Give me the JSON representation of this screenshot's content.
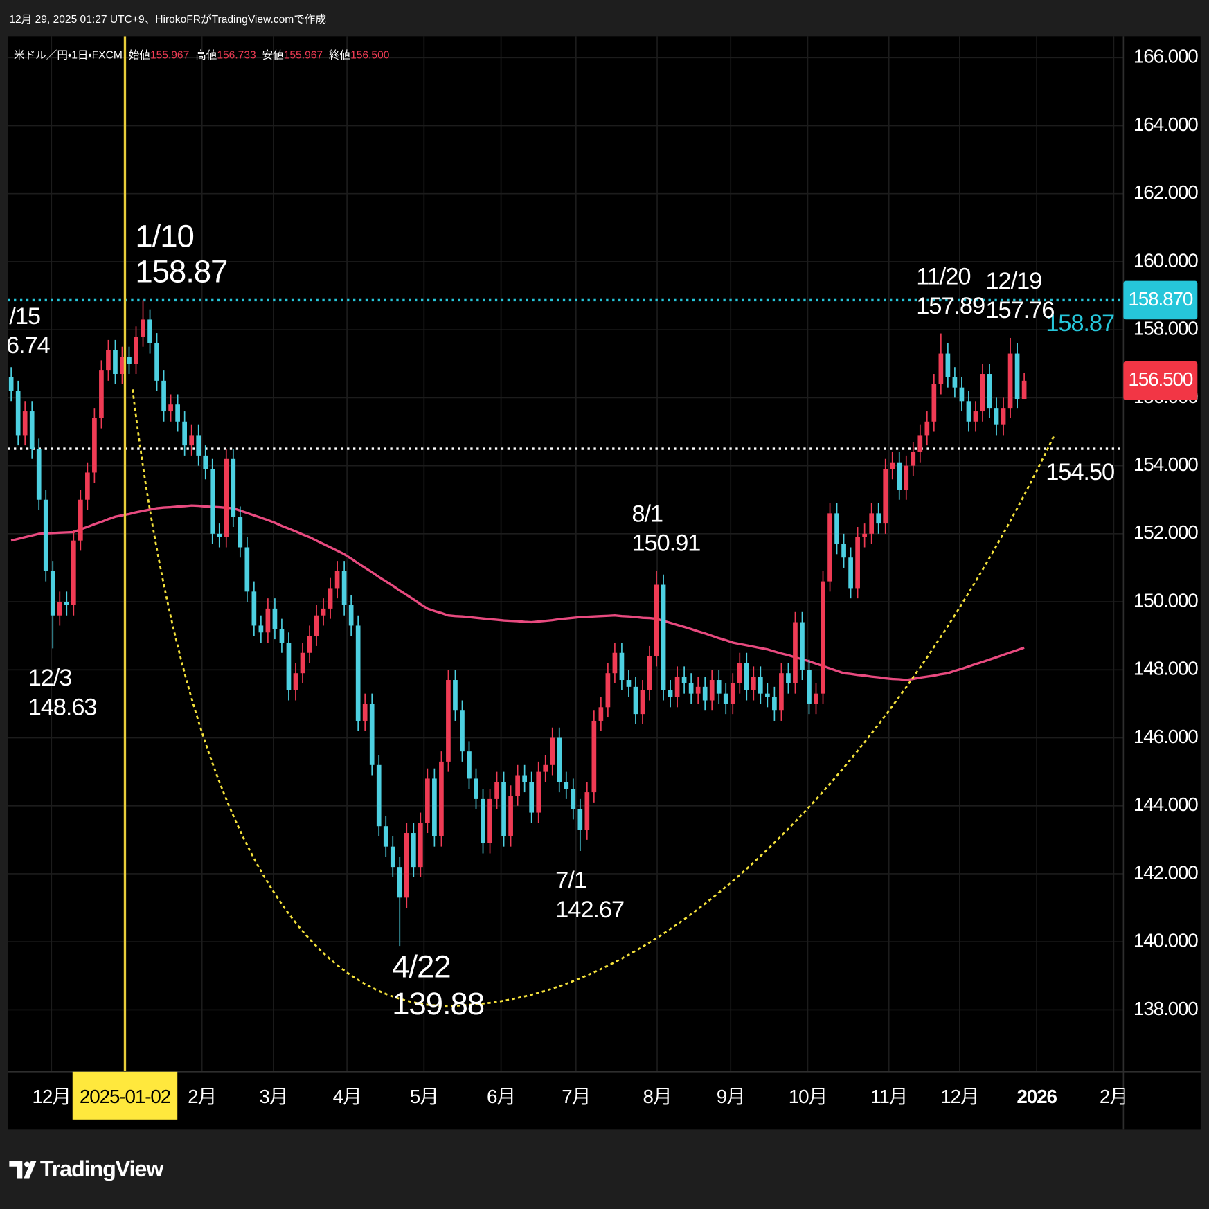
{
  "header": {
    "text": "12月 29, 2025 01:27 UTC+9、HirokoFRがTradingView.comで作成"
  },
  "branding": "TradingView",
  "chart_data": {
    "type": "candlestick",
    "legend": {
      "symbol": "米ドル／円・1日・FXCM",
      "items": [
        {
          "name": "始値",
          "value": 155.967
        },
        {
          "name": "高値",
          "value": 156.733
        },
        {
          "name": "安値",
          "value": 155.967
        },
        {
          "name": "終値",
          "value": 156.5,
          "label": "156.500"
        }
      ]
    },
    "up_color": "#ef3b54",
    "down_color": "#4dd0e1",
    "categories": [
      null,
      null,
      null,
      null,
      null,
      null,
      null,
      null,
      null,
      null,
      null,
      null,
      null,
      null,
      null,
      null,
      null,
      null,
      null,
      null,
      null,
      null,
      null,
      null,
      null,
      null,
      null,
      null,
      null,
      null,
      null,
      null,
      null,
      null,
      null,
      null,
      null,
      null,
      null,
      null,
      null,
      null,
      null,
      null,
      null,
      null,
      null,
      null,
      null,
      null,
      null,
      null,
      null,
      null,
      null,
      null,
      null,
      null,
      null,
      null,
      null,
      null,
      null,
      null,
      null,
      null,
      null,
      null,
      null,
      null,
      null,
      null,
      null,
      null,
      null,
      null,
      null,
      null,
      null,
      null,
      null,
      null,
      null,
      null,
      null,
      null,
      null,
      null,
      null,
      null,
      null,
      null,
      null,
      null,
      null,
      null,
      null,
      null,
      null,
      null,
      null,
      null,
      null,
      null,
      null,
      null,
      null,
      null,
      null,
      null,
      null,
      null,
      null,
      null,
      null,
      null,
      null,
      null,
      null,
      null,
      null,
      null,
      null,
      null,
      null,
      null,
      null,
      null,
      null,
      null,
      null,
      null,
      null,
      null,
      null,
      null,
      null,
      null,
      null,
      null,
      null,
      null,
      null,
      null,
      null,
      null,
      null
    ],
    "values": [
      [
        156.6,
        156.9,
        155.9,
        156.2
      ],
      [
        156.2,
        156.5,
        154.6,
        154.9
      ],
      [
        154.9,
        155.9,
        154.6,
        155.6
      ],
      [
        155.6,
        155.9,
        154.2,
        154.5
      ],
      [
        154.5,
        154.8,
        152.7,
        153.0
      ],
      [
        153.0,
        153.3,
        150.6,
        150.9
      ],
      [
        150.9,
        151.2,
        148.63,
        149.6
      ],
      [
        149.6,
        150.3,
        149.3,
        150.0
      ],
      [
        150.0,
        150.3,
        149.6,
        149.9
      ],
      [
        149.9,
        152.1,
        149.6,
        151.8
      ],
      [
        151.8,
        153.3,
        151.5,
        153.0
      ],
      [
        153.0,
        154.1,
        152.7,
        153.8
      ],
      [
        153.8,
        155.7,
        153.5,
        155.4
      ],
      [
        155.4,
        157.1,
        155.1,
        156.8
      ],
      [
        156.8,
        157.7,
        156.5,
        157.4
      ],
      [
        157.4,
        157.7,
        156.4,
        156.7
      ],
      [
        156.7,
        157.5,
        156.4,
        157.2
      ],
      [
        157.2,
        157.5,
        156.7,
        157.0
      ],
      [
        157.0,
        158.1,
        156.7,
        157.8
      ],
      [
        157.8,
        158.87,
        157.5,
        158.3
      ],
      [
        158.3,
        158.6,
        157.3,
        157.6
      ],
      [
        157.6,
        157.9,
        156.2,
        156.5
      ],
      [
        156.5,
        156.8,
        155.3,
        155.6
      ],
      [
        155.6,
        156.1,
        155.3,
        155.8
      ],
      [
        155.8,
        156.1,
        155.0,
        155.3
      ],
      [
        155.3,
        155.6,
        154.3,
        154.6
      ],
      [
        154.6,
        155.2,
        154.3,
        154.9
      ],
      [
        154.9,
        155.2,
        154.0,
        154.3
      ],
      [
        154.3,
        154.6,
        153.6,
        153.9
      ],
      [
        153.9,
        154.2,
        151.7,
        152.0
      ],
      [
        152.0,
        152.3,
        151.6,
        151.9
      ],
      [
        151.9,
        154.5,
        151.6,
        154.2
      ],
      [
        154.2,
        154.5,
        152.2,
        152.5
      ],
      [
        152.5,
        152.8,
        151.3,
        151.6
      ],
      [
        151.6,
        151.9,
        150.0,
        150.3
      ],
      [
        150.3,
        150.6,
        149.0,
        149.3
      ],
      [
        149.3,
        149.6,
        148.8,
        149.1
      ],
      [
        149.1,
        150.1,
        148.8,
        149.8
      ],
      [
        149.8,
        150.1,
        148.9,
        149.2
      ],
      [
        149.2,
        149.5,
        148.5,
        148.8
      ],
      [
        148.8,
        149.1,
        147.1,
        147.4
      ],
      [
        147.4,
        148.2,
        147.1,
        147.9
      ],
      [
        147.9,
        148.8,
        147.6,
        148.5
      ],
      [
        148.5,
        149.3,
        148.2,
        149.0
      ],
      [
        149.0,
        149.9,
        148.7,
        149.6
      ],
      [
        149.6,
        150.1,
        149.3,
        149.8
      ],
      [
        149.8,
        150.7,
        149.5,
        150.4
      ],
      [
        150.4,
        151.2,
        150.1,
        150.9
      ],
      [
        150.9,
        151.2,
        149.6,
        149.9
      ],
      [
        149.9,
        150.2,
        149.0,
        149.3
      ],
      [
        149.3,
        149.6,
        146.2,
        146.5
      ],
      [
        146.5,
        147.3,
        146.2,
        147.0
      ],
      [
        147.0,
        147.3,
        144.9,
        145.2
      ],
      [
        145.2,
        145.5,
        143.1,
        143.4
      ],
      [
        143.4,
        143.7,
        142.5,
        142.8
      ],
      [
        142.8,
        143.1,
        141.9,
        142.2
      ],
      [
        142.2,
        142.5,
        139.88,
        141.3
      ],
      [
        141.3,
        143.5,
        141.0,
        143.2
      ],
      [
        143.2,
        143.5,
        141.9,
        142.2
      ],
      [
        142.2,
        143.8,
        141.9,
        143.5
      ],
      [
        143.5,
        145.1,
        143.2,
        144.8
      ],
      [
        144.8,
        145.1,
        142.8,
        143.1
      ],
      [
        143.1,
        145.6,
        142.8,
        145.3
      ],
      [
        145.3,
        148.0,
        145.0,
        147.7
      ],
      [
        147.7,
        148.0,
        146.5,
        146.8
      ],
      [
        146.8,
        147.1,
        145.3,
        145.6
      ],
      [
        145.6,
        145.9,
        144.5,
        144.8
      ],
      [
        144.8,
        145.1,
        143.9,
        144.2
      ],
      [
        144.2,
        144.5,
        142.6,
        142.9
      ],
      [
        142.9,
        144.5,
        142.6,
        144.2
      ],
      [
        144.2,
        145.0,
        143.9,
        144.7
      ],
      [
        144.7,
        145.0,
        142.8,
        143.1
      ],
      [
        143.1,
        144.6,
        142.8,
        144.3
      ],
      [
        144.3,
        145.2,
        144.0,
        144.9
      ],
      [
        144.9,
        145.2,
        144.4,
        144.7
      ],
      [
        144.7,
        145.0,
        143.5,
        143.8
      ],
      [
        143.8,
        145.3,
        143.5,
        145.0
      ],
      [
        145.0,
        145.5,
        144.7,
        145.2
      ],
      [
        145.2,
        146.3,
        144.9,
        146.0
      ],
      [
        146.0,
        146.3,
        144.4,
        144.7
      ],
      [
        144.7,
        145.0,
        144.2,
        144.5
      ],
      [
        144.5,
        144.8,
        143.6,
        143.9
      ],
      [
        143.9,
        144.2,
        142.67,
        143.3
      ],
      [
        143.3,
        144.7,
        143.0,
        144.4
      ],
      [
        144.4,
        146.8,
        144.1,
        146.5
      ],
      [
        146.5,
        147.2,
        146.2,
        146.9
      ],
      [
        146.9,
        148.2,
        146.6,
        147.9
      ],
      [
        147.9,
        148.8,
        147.6,
        148.5
      ],
      [
        148.5,
        148.8,
        147.4,
        147.7
      ],
      [
        147.7,
        148.0,
        147.2,
        147.5
      ],
      [
        147.5,
        147.8,
        146.4,
        146.7
      ],
      [
        146.7,
        147.7,
        146.4,
        147.4
      ],
      [
        147.4,
        148.7,
        147.1,
        148.4
      ],
      [
        148.4,
        150.91,
        148.1,
        150.5
      ],
      [
        150.5,
        150.8,
        147.1,
        147.4
      ],
      [
        147.4,
        147.7,
        146.9,
        147.2
      ],
      [
        147.2,
        148.1,
        146.9,
        147.8
      ],
      [
        147.8,
        148.1,
        147.3,
        147.6
      ],
      [
        147.6,
        147.9,
        147.0,
        147.3
      ],
      [
        147.3,
        147.8,
        147.0,
        147.5
      ],
      [
        147.5,
        147.8,
        146.8,
        147.1
      ],
      [
        147.1,
        148.0,
        146.8,
        147.7
      ],
      [
        147.7,
        148.0,
        147.0,
        147.3
      ],
      [
        147.3,
        147.6,
        146.7,
        147.0
      ],
      [
        147.0,
        147.9,
        146.7,
        147.6
      ],
      [
        147.6,
        148.5,
        147.3,
        148.2
      ],
      [
        148.2,
        148.5,
        147.1,
        147.4
      ],
      [
        147.4,
        148.1,
        147.1,
        147.8
      ],
      [
        147.8,
        148.1,
        147.0,
        147.3
      ],
      [
        147.3,
        147.6,
        146.9,
        147.2
      ],
      [
        147.2,
        147.5,
        146.5,
        146.8
      ],
      [
        146.8,
        148.2,
        146.5,
        147.9
      ],
      [
        147.9,
        148.2,
        147.3,
        147.6
      ],
      [
        147.6,
        149.7,
        147.3,
        149.4
      ],
      [
        149.4,
        149.7,
        147.7,
        148.0
      ],
      [
        148.0,
        148.3,
        146.7,
        147.0
      ],
      [
        147.0,
        147.6,
        146.7,
        147.3
      ],
      [
        147.3,
        150.9,
        147.0,
        150.6
      ],
      [
        150.6,
        152.9,
        150.3,
        152.6
      ],
      [
        152.6,
        152.9,
        151.4,
        151.7
      ],
      [
        151.7,
        152.0,
        151.0,
        151.3
      ],
      [
        151.3,
        151.6,
        150.1,
        150.4
      ],
      [
        150.4,
        152.2,
        150.1,
        151.9
      ],
      [
        151.9,
        152.3,
        151.6,
        152.0
      ],
      [
        152.0,
        152.9,
        151.7,
        152.6
      ],
      [
        152.6,
        152.9,
        152.0,
        152.3
      ],
      [
        152.3,
        154.2,
        152.0,
        153.9
      ],
      [
        153.9,
        154.4,
        153.6,
        154.1
      ],
      [
        154.1,
        154.4,
        153.0,
        153.3
      ],
      [
        153.3,
        154.3,
        153.0,
        154.0
      ],
      [
        154.0,
        154.7,
        153.7,
        154.4
      ],
      [
        154.4,
        155.2,
        154.1,
        154.9
      ],
      [
        154.9,
        155.6,
        154.6,
        155.3
      ],
      [
        155.3,
        156.7,
        155.0,
        156.4
      ],
      [
        156.4,
        157.89,
        156.1,
        157.3
      ],
      [
        157.3,
        157.6,
        156.3,
        156.6
      ],
      [
        156.6,
        156.9,
        156.0,
        156.3
      ],
      [
        156.3,
        156.6,
        155.6,
        155.9
      ],
      [
        155.9,
        156.2,
        155.0,
        155.3
      ],
      [
        155.3,
        155.9,
        155.0,
        155.6
      ],
      [
        155.6,
        157.0,
        155.3,
        156.7
      ],
      [
        156.7,
        157.0,
        155.4,
        155.7
      ],
      [
        155.7,
        156.0,
        154.9,
        155.2
      ],
      [
        155.2,
        156.0,
        154.9,
        155.7
      ],
      [
        155.7,
        157.76,
        155.4,
        157.3
      ],
      [
        157.3,
        157.6,
        155.7,
        155.967
      ],
      [
        155.967,
        156.733,
        155.967,
        156.5
      ]
    ],
    "moving_average": {
      "color": "#e84a7f",
      "values": [
        151.8,
        151.85,
        151.9,
        151.95,
        152.0,
        152.01,
        152.02,
        152.03,
        152.04,
        152.05,
        152.13,
        152.2,
        152.28,
        152.35,
        152.43,
        152.5,
        152.54,
        152.58,
        152.63,
        152.67,
        152.71,
        152.75,
        152.77,
        152.78,
        152.8,
        152.81,
        152.83,
        152.82,
        152.8,
        152.79,
        152.78,
        152.76,
        152.75,
        152.68,
        152.61,
        152.54,
        152.47,
        152.4,
        152.32,
        152.23,
        152.15,
        152.07,
        151.98,
        151.9,
        151.8,
        151.7,
        151.6,
        151.5,
        151.4,
        151.27,
        151.13,
        151.0,
        150.87,
        150.73,
        150.6,
        150.47,
        150.33,
        150.2,
        150.07,
        149.93,
        149.8,
        149.73,
        149.67,
        149.6,
        149.58,
        149.57,
        149.55,
        149.53,
        149.51,
        149.49,
        149.47,
        149.45,
        149.44,
        149.43,
        149.41,
        149.4,
        149.42,
        149.44,
        149.46,
        149.49,
        149.51,
        149.53,
        149.55,
        149.56,
        149.57,
        149.58,
        149.59,
        149.6,
        149.58,
        149.57,
        149.55,
        149.53,
        149.52,
        149.5,
        149.44,
        149.38,
        149.32,
        149.26,
        149.2,
        149.13,
        149.07,
        149.0,
        148.93,
        148.87,
        148.8,
        148.76,
        148.72,
        148.68,
        148.64,
        148.6,
        148.54,
        148.48,
        148.43,
        148.37,
        148.31,
        148.25,
        148.18,
        148.11,
        148.04,
        147.97,
        147.9,
        147.88,
        147.85,
        147.83,
        147.8,
        147.78,
        147.75,
        147.73,
        147.72,
        147.7,
        147.73,
        147.77,
        147.8,
        147.83,
        147.87,
        147.9,
        147.97,
        148.03,
        148.1,
        148.17,
        148.23,
        148.3,
        148.37,
        148.44,
        148.51,
        148.58,
        148.65
      ]
    },
    "xlim": [
      -0.5,
      160.3
    ],
    "xticks": [
      {
        "value": 5.8,
        "label": "12月"
      },
      {
        "value": 16.4,
        "label": "2025-01-02",
        "highlight": true
      },
      {
        "value": 27.5,
        "label": "2月"
      },
      {
        "value": 37.8,
        "label": "3月"
      },
      {
        "value": 48.4,
        "label": "4月"
      },
      {
        "value": 59.5,
        "label": "5月"
      },
      {
        "value": 70.6,
        "label": "6月"
      },
      {
        "value": 81.4,
        "label": "7月"
      },
      {
        "value": 93.1,
        "label": "8月"
      },
      {
        "value": 103.7,
        "label": "9月"
      },
      {
        "value": 114.8,
        "label": "10月"
      },
      {
        "value": 126.5,
        "label": "11月"
      },
      {
        "value": 136.7,
        "label": "12月"
      },
      {
        "value": 147.8,
        "label": "2026",
        "bold": true
      },
      {
        "value": 158.9,
        "label": "2月"
      }
    ],
    "ylim": [
      136.18,
      166.63
    ],
    "yticks": [
      {
        "value": 138,
        "label": "138.000"
      },
      {
        "value": 140,
        "label": "140.000"
      },
      {
        "value": 142,
        "label": "142.000"
      },
      {
        "value": 144,
        "label": "144.000"
      },
      {
        "value": 146,
        "label": "146.000"
      },
      {
        "value": 148,
        "label": "148.000"
      },
      {
        "value": 150,
        "label": "150.000"
      },
      {
        "value": 152,
        "label": "152.000"
      },
      {
        "value": 154,
        "label": "154.000"
      },
      {
        "value": 156,
        "label": "156.000"
      },
      {
        "value": 158,
        "label": "158.000"
      },
      {
        "value": 160,
        "label": "160.000"
      },
      {
        "value": 162,
        "label": "162.000"
      },
      {
        "value": 164,
        "label": "164.000"
      },
      {
        "value": 166,
        "label": "166.000"
      }
    ],
    "grid": true,
    "hlines": [
      {
        "value": 158.87,
        "label": "158.87",
        "color": "#26c6da"
      },
      {
        "value": 154.5,
        "label": "154.50",
        "color": "#ffffff"
      }
    ],
    "price_tags": [
      {
        "value": 158.87,
        "label": "158.870",
        "color": "#26c6da"
      },
      {
        "value": 156.5,
        "label": "156.500",
        "color": "#f23645"
      }
    ],
    "annotations": [
      {
        "date": "1/10",
        "value": 158.87,
        "size": "large"
      },
      {
        "date": "12/3",
        "value": 148.63
      },
      {
        "date": "4/22",
        "value": 139.88,
        "size": "large"
      },
      {
        "date": "7/1",
        "value": 142.67
      },
      {
        "date": "8/1",
        "value": 150.91
      },
      {
        "date": "11/20",
        "value": 157.89
      },
      {
        "date": "12/19",
        "value": 157.76
      }
    ],
    "edge_annotation": {
      "date": "/15",
      "value": "6.74"
    }
  }
}
